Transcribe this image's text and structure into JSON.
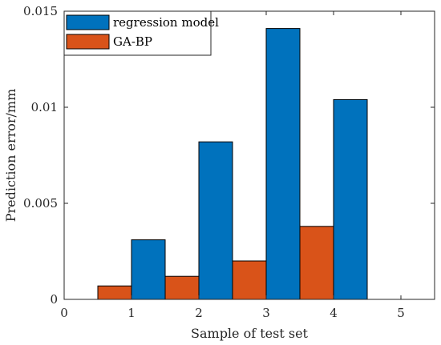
{
  "chart_data": {
    "type": "bar",
    "categories": [
      "1",
      "2",
      "3",
      "4"
    ],
    "series": [
      {
        "name": "regression model",
        "values": [
          0.0031,
          0.0082,
          0.0141,
          0.0104
        ],
        "color": "#0072BD"
      },
      {
        "name": "GA-BP",
        "values": [
          0.0007,
          0.0012,
          0.002,
          0.0038
        ],
        "color": "#D95319"
      }
    ],
    "xlabel": "Sample of test set",
    "ylabel": "Prediction error/mm",
    "xlim": [
      0,
      5.5
    ],
    "ylim": [
      0,
      0.015
    ],
    "xticks": [
      "0",
      "1",
      "2",
      "3",
      "4",
      "5"
    ],
    "yticks": [
      "0",
      "0.005",
      "0.01",
      "0.015"
    ],
    "grid": false,
    "legend_position": "top-left"
  }
}
